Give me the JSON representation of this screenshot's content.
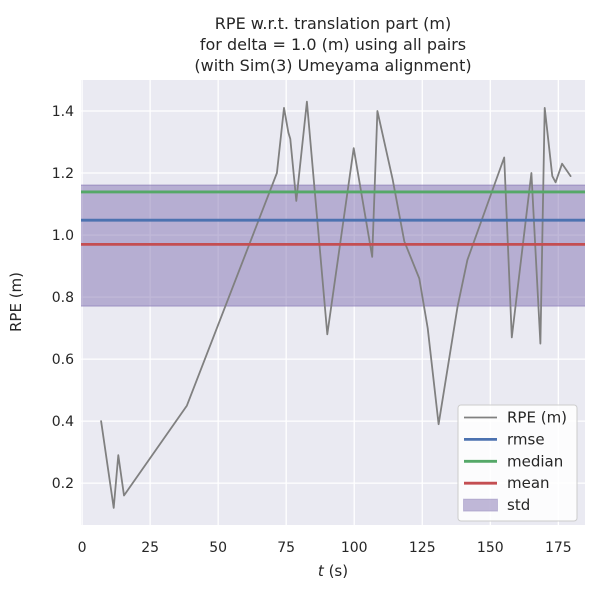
{
  "title": {
    "line1": "RPE w.r.t. translation part (m)",
    "line2": "for delta = 1.0 (m) using all pairs",
    "line3": "(with Sim(3) Umeyama alignment)"
  },
  "axes": {
    "xlabel_italic": "t",
    "xlabel_rest": " (s)",
    "ylabel": "RPE (m)"
  },
  "chart_data": {
    "type": "line",
    "title": "RPE w.r.t. translation part (m)\nfor delta = 1.0 (m) using all pairs\n(with Sim(3) Umeyama alignment)",
    "xlabel": "t (s)",
    "ylabel": "RPE (m)",
    "xlim": [
      -0.4,
      184.8
    ],
    "ylim": [
      0.065,
      1.5
    ],
    "x_ticks": [
      0,
      25,
      50,
      75,
      100,
      125,
      150,
      175
    ],
    "y_ticks": [
      0.2,
      0.4,
      0.6,
      0.8,
      1.0,
      1.2,
      1.4
    ],
    "grid": true,
    "legend_position": "lower right",
    "series": [
      {
        "name": "RPE (m)",
        "x": [
          7.0,
          11.6,
          13.3,
          15.4,
          38.5,
          71.6,
          74.2,
          75.8,
          76.5,
          78.7,
          82.6,
          90.1,
          99.8,
          106.6,
          108.5,
          114.1,
          118.4,
          123.9,
          127.0,
          131.0,
          138.0,
          141.6,
          155.1,
          157.9,
          165.1,
          168.4,
          170.0,
          172.8,
          174.0,
          176.4,
          179.5
        ],
        "y": [
          0.4,
          0.12,
          0.29,
          0.16,
          0.45,
          1.2,
          1.41,
          1.33,
          1.31,
          1.11,
          1.43,
          0.68,
          1.28,
          0.93,
          1.4,
          1.18,
          0.98,
          0.86,
          0.7,
          0.39,
          0.77,
          0.92,
          1.25,
          0.67,
          1.2,
          0.65,
          1.41,
          1.19,
          1.17,
          1.23,
          1.19
        ]
      }
    ],
    "stats": {
      "rmse": 1.048,
      "median": 1.139,
      "mean": 0.97,
      "std": 0.195
    },
    "std_band": [
      0.771,
      1.161
    ]
  },
  "legend": {
    "items": [
      {
        "label": "RPE (m)",
        "color": "#808080",
        "type": "line"
      },
      {
        "label": "rmse",
        "color": "#4c72b0",
        "type": "line"
      },
      {
        "label": "median",
        "color": "#55a868",
        "type": "line"
      },
      {
        "label": "mean",
        "color": "#c44e52",
        "type": "line"
      },
      {
        "label": "std",
        "color": "#8172b2",
        "type": "patch"
      }
    ]
  },
  "colors": {
    "figure_bg": "#ffffff",
    "axes_bg": "#eaeaf2",
    "grid": "#ffffff",
    "text": "#262626",
    "rpe_line": "#808080",
    "rmse_line": "#4c72b0",
    "median_line": "#55a868",
    "mean_line": "#c44e52",
    "std_fill": "#8172b2",
    "legend_bg": "#ffffff",
    "legend_border": "#cccccc"
  }
}
